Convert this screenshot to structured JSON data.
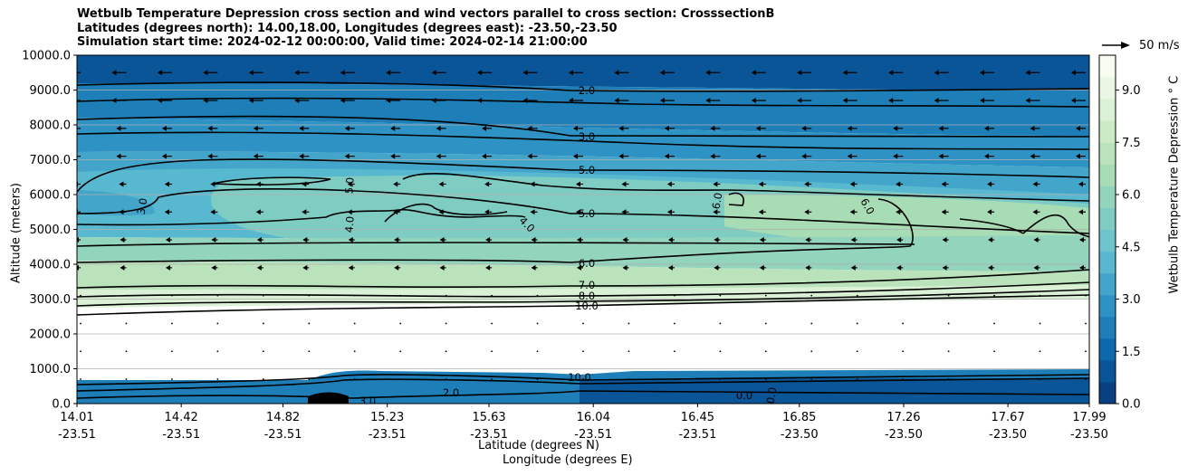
{
  "chart_data": {
    "type": "contourf",
    "title_lines": [
      "Wetbulb Temperature Depression cross section and wind vectors parallel to cross section: CrosssectionB",
      "Latitudes (degrees north): 14.00,18.00, Longitudes (degrees east): -23.50,-23.50",
      "Simulation start time: 2024-02-12 00:00:00, Valid time: 2024-02-14 21:00:00"
    ],
    "ylabel": "Altitude (meters)",
    "xlabel_lat": "Latitude (degrees N)",
    "xlabel_lon": "Longitude (degrees E)",
    "ylim": [
      0,
      10000
    ],
    "yticks": [
      0,
      1000,
      2000,
      3000,
      4000,
      5000,
      6000,
      7000,
      8000,
      9000,
      10000
    ],
    "ytick_labels": [
      "0.0",
      "1000.0",
      "2000.0",
      "3000.0",
      "4000.0",
      "5000.0",
      "6000.0",
      "7000.0",
      "8000.0",
      "9000.0",
      "10000.0"
    ],
    "xlim": [
      14.01,
      17.99
    ],
    "xticks": [
      14.01,
      14.42,
      14.82,
      15.23,
      15.63,
      16.04,
      16.45,
      16.85,
      17.26,
      17.67,
      17.99
    ],
    "xtick_lat_labels": [
      "14.01",
      "14.42",
      "14.82",
      "15.23",
      "15.63",
      "16.04",
      "16.45",
      "16.85",
      "17.26",
      "17.67",
      "17.99"
    ],
    "xtick_lon_labels": [
      "-23.51",
      "-23.51",
      "-23.51",
      "-23.51",
      "-23.51",
      "-23.51",
      "-23.51",
      "-23.50",
      "-23.50",
      "-23.50",
      "-23.50"
    ],
    "colorbar": {
      "label": "Wetbulb Temperature Depression $^\\circ$C",
      "label_display": "Wetbulb Temperature Depression ° C",
      "range": [
        0,
        10
      ],
      "ticks": [
        0.0,
        1.5,
        3.0,
        4.5,
        6.0,
        7.5,
        9.0
      ],
      "tick_labels": [
        "0.0",
        "1.5",
        "3.0",
        "4.5",
        "6.0",
        "7.5",
        "9.0"
      ],
      "colors": [
        "#084081",
        "#0a5597",
        "#0c6aac",
        "#1d7eb8",
        "#2f92c4",
        "#43a5ca",
        "#58b8cf",
        "#6ec4cc",
        "#7fccc3",
        "#93d4bd",
        "#a8dcb5",
        "#bae3bc",
        "#ccebc5",
        "#dbf1d5",
        "#e9f6e4",
        "#f7fcf0"
      ]
    },
    "contour_labels": [
      "2.0",
      "3.0",
      "5.0",
      "5.0",
      "6.0",
      "7.0",
      "8.0",
      "10.0",
      "3.0",
      "5.0",
      "4.0",
      "4.0",
      "6.0",
      "6.0",
      "10.0",
      "0.0",
      "0.0",
      "3.0",
      "2.0"
    ],
    "quiver_key": {
      "value": 50,
      "label": "50 m/s"
    },
    "wind_direction_upper": "northward-to-southward (leftward arrows)"
  }
}
